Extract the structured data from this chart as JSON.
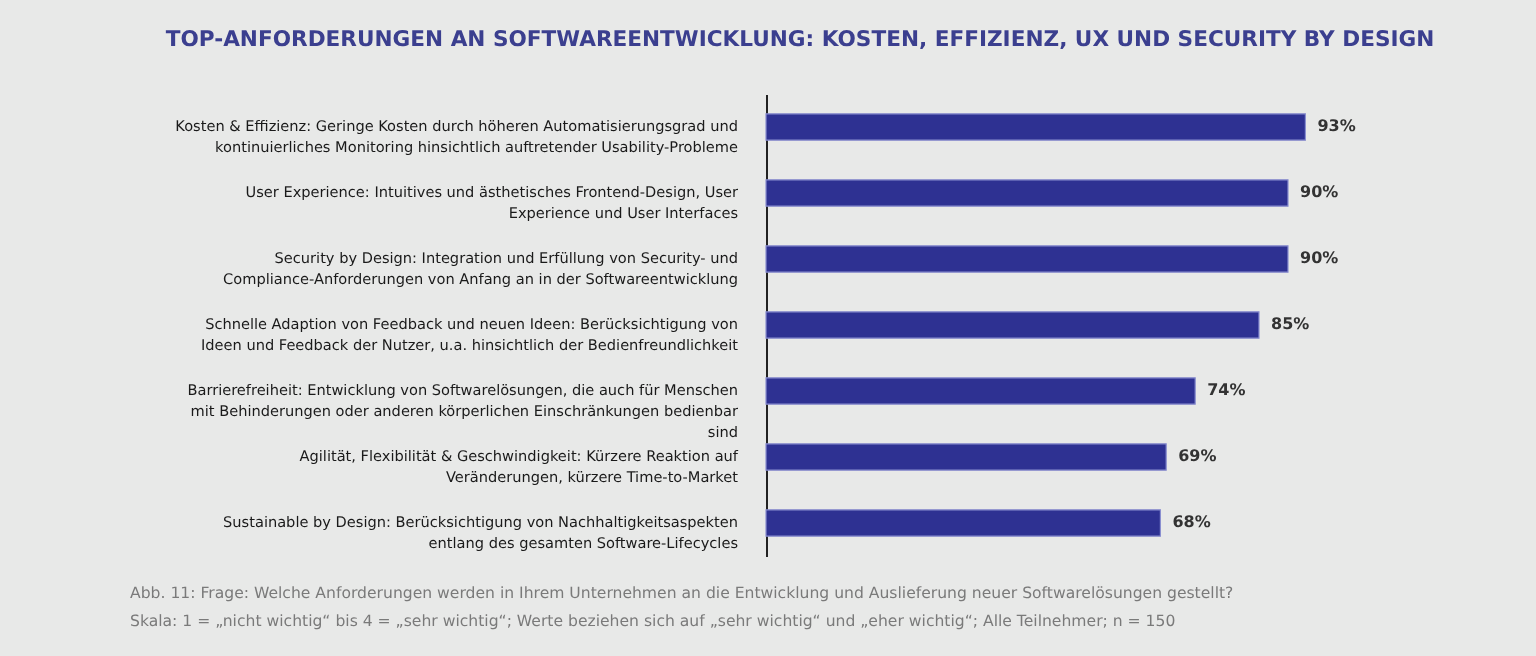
{
  "chart_data": {
    "type": "bar",
    "orientation": "horizontal",
    "title": "TOP-ANFORDERUNGEN AN SOFTWAREENTWICKLUNG: KOSTEN, EFFIZIENZ, UX UND SECURITY BY DESIGN",
    "categories": [
      "Kosten & Effizienz: Geringe Kosten durch höheren Automatisierungsgrad und kontinuierliches Monitoring hinsichtlich auftretender Usability-Probleme",
      "User Experience: Intuitives und ästhetisches Frontend-Design, User Experience und User Interfaces",
      "Security by Design: Integration und Erfüllung von Security- und Compliance-Anforderungen von Anfang an in der Softwareentwicklung",
      "Schnelle Adaption von Feedback und neuen Ideen: Berücksichtigung von Ideen und Feedback der Nutzer, u.a. hinsichtlich der Bedienfreundlichkeit",
      "Barrierefreiheit: Entwicklung von Softwarelösungen, die auch für Menschen mit Behinderungen oder anderen körperlichen Einschränkungen bedienbar sind",
      "Agilität, Flexibilität & Geschwindigkeit: Kürzere Reaktion auf Veränderungen, kürzere Time-to-Market",
      "Sustainable by Design: Berücksichtigung von Nachhaltigkeitsaspekten entlang des gesamten Software-Lifecycles"
    ],
    "values": [
      93,
      90,
      90,
      85,
      74,
      69,
      68
    ],
    "value_labels": [
      "93%",
      "90%",
      "90%",
      "85%",
      "74%",
      "69%",
      "68%"
    ],
    "color": "#2e3192",
    "grid": false,
    "annotations": [
      "Abb. 11: Frage: Welche Anforderungen werden in Ihrem Unternehmen an die Entwicklung und Auslieferung neuer Softwarelösungen gestellt?",
      "Skala: 1 = „nicht wichtig“ bis 4 = „sehr wichtig“; Werte beziehen sich auf „sehr wichtig“ und „eher wichtig“; Alle Teilnehmer; n = 150"
    ]
  }
}
